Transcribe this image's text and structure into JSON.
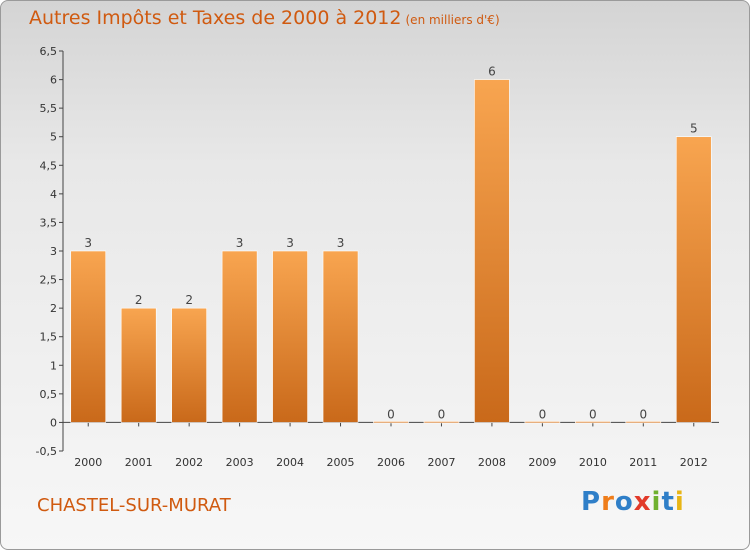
{
  "title": "Autres Impôts et Taxes de 2000 à 2012",
  "title_unit": "(en milliers d'€)",
  "commune": "CHASTEL-SUR-MURAT",
  "logo": {
    "text": "Proxiti",
    "letter_colors": [
      "#2f7fc8",
      "#ef7d1a",
      "#2f7fc8",
      "#e23a2a",
      "#6fb12f",
      "#2f7fc8",
      "#e8b515"
    ]
  },
  "colors": {
    "bar_light": "#f8a550",
    "bar_dark": "#c9691a",
    "title": "#d05a10",
    "axis_text": "#333333"
  },
  "chart_data": {
    "type": "bar",
    "title": "Autres Impôts et Taxes de 2000 à 2012",
    "categories": [
      "2000",
      "2001",
      "2002",
      "2003",
      "2004",
      "2005",
      "2006",
      "2007",
      "2008",
      "2009",
      "2010",
      "2011",
      "2012"
    ],
    "values": [
      3,
      2,
      2,
      3,
      3,
      3,
      0,
      0,
      6,
      0,
      0,
      0,
      5
    ],
    "value_labels": [
      "3",
      "2",
      "2",
      "3",
      "3",
      "3",
      "0",
      "0",
      "6",
      "0",
      "0",
      "0",
      "5"
    ],
    "ylim": [
      -0.5,
      6.5
    ],
    "yticks": [
      -0.5,
      0,
      0.5,
      1,
      1.5,
      2,
      2.5,
      3,
      3.5,
      4,
      4.5,
      5,
      5.5,
      6,
      6.5
    ],
    "ytick_labels": [
      "-0,5",
      "0",
      "0,5",
      "1",
      "1,5",
      "2",
      "2,5",
      "3",
      "3,5",
      "4",
      "4,5",
      "5",
      "5,5",
      "6",
      "6,5"
    ],
    "xlabel": "",
    "ylabel": "",
    "grid": false
  }
}
